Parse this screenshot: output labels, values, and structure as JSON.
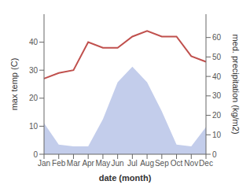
{
  "chart_data": {
    "type": "line",
    "categories": [
      "Jan",
      "Feb",
      "Mar",
      "Apr",
      "May",
      "Jun",
      "Jul",
      "Aug",
      "Sep",
      "Oct",
      "Nov",
      "Dec"
    ],
    "series": [
      {
        "type": "area",
        "axis": "y2",
        "color": "#b8c4e8",
        "values": [
          16,
          5,
          4,
          4,
          18,
          37,
          45,
          37,
          22,
          5,
          4,
          14
        ]
      },
      {
        "type": "line",
        "axis": "y",
        "color": "#c0504d",
        "values": [
          27,
          29,
          30,
          40,
          38,
          38,
          42,
          44,
          42,
          42,
          35,
          33
        ]
      }
    ],
    "xlabel": "date (month)",
    "ylabel": "max temp (C)",
    "y2label": "med. precipitation (kg/m2)",
    "ylim": [
      0,
      50
    ],
    "yticks": [
      0,
      10,
      20,
      30,
      40
    ],
    "y2lim": [
      0,
      72
    ],
    "y2ticks": [
      0,
      10,
      20,
      30,
      40,
      50,
      60
    ],
    "grid": false
  }
}
